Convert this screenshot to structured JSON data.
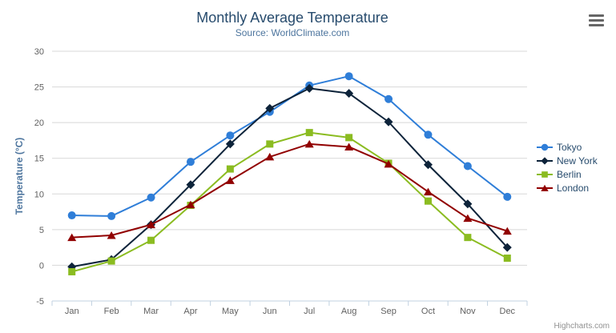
{
  "chart_data": {
    "type": "line",
    "title": "Monthly Average Temperature",
    "subtitle": "Source: WorldClimate.com",
    "categories": [
      "Jan",
      "Feb",
      "Mar",
      "Apr",
      "May",
      "Jun",
      "Jul",
      "Aug",
      "Sep",
      "Oct",
      "Nov",
      "Dec"
    ],
    "xlabel": "",
    "ylabel": "Temperature (°C)",
    "ylim": [
      -5,
      30
    ],
    "ytick_step": 5,
    "grid": true,
    "legend_position": "right",
    "colors": {
      "grid_line": "#d8d8d8",
      "axis_line": "#c0d0e0",
      "axis_label": "#606060",
      "title": "#274b6d",
      "subtitle": "#4d759e"
    },
    "series": [
      {
        "name": "Tokyo",
        "marker": "circle",
        "color": "#2f7ed8",
        "values": [
          7.0,
          6.9,
          9.5,
          14.5,
          18.2,
          21.5,
          25.2,
          26.5,
          23.3,
          18.3,
          13.9,
          9.6
        ]
      },
      {
        "name": "New York",
        "marker": "diamond",
        "color": "#0d233a",
        "values": [
          -0.2,
          0.8,
          5.7,
          11.3,
          17.0,
          22.0,
          24.8,
          24.1,
          20.1,
          14.1,
          8.6,
          2.5
        ]
      },
      {
        "name": "Berlin",
        "marker": "square",
        "color": "#8bbc21",
        "values": [
          -0.9,
          0.6,
          3.5,
          8.4,
          13.5,
          17.0,
          18.6,
          17.9,
          14.3,
          9.0,
          3.9,
          1.0
        ]
      },
      {
        "name": "London",
        "marker": "triangle",
        "color": "#910000",
        "values": [
          3.9,
          4.2,
          5.7,
          8.5,
          11.9,
          15.2,
          17.0,
          16.6,
          14.2,
          10.3,
          6.6,
          4.8
        ]
      }
    ]
  },
  "export_menu": {
    "icon": "hamburger-icon"
  },
  "credits": {
    "label": "Highcharts.com"
  }
}
